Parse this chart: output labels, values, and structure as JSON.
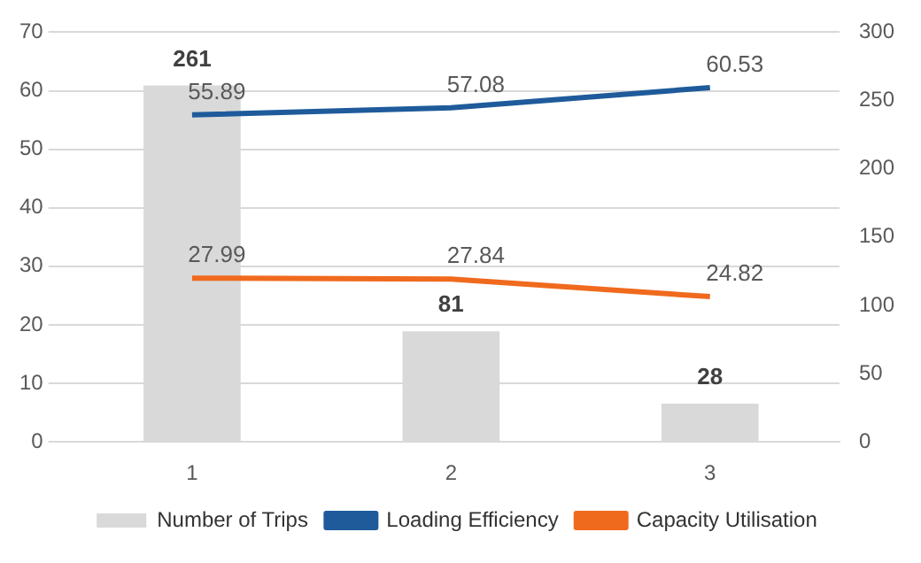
{
  "chart_data": {
    "type": "bar",
    "categories": [
      "1",
      "2",
      "3"
    ],
    "series": [
      {
        "name": "Number of Trips",
        "axis": "y2",
        "color": "#d9d9d9",
        "values": [
          261,
          81,
          28
        ]
      },
      {
        "name": "Loading Efficiency",
        "type": "line",
        "axis": "y",
        "color": "#1f5b9b",
        "values": [
          55.89,
          57.08,
          60.53
        ]
      },
      {
        "name": "Capacity Utilisation",
        "type": "line",
        "axis": "y",
        "color": "#f06a1e",
        "values": [
          27.99,
          27.84,
          24.82
        ]
      }
    ],
    "ylim": [
      0,
      70
    ],
    "yticks": [
      0,
      10,
      20,
      30,
      40,
      50,
      60,
      70
    ],
    "y2lim": [
      0,
      300
    ],
    "y2ticks": [
      0,
      50,
      100,
      150,
      200,
      250,
      300
    ],
    "grid": "y",
    "legend": "bottom",
    "marker": "none",
    "data_labels": true
  }
}
